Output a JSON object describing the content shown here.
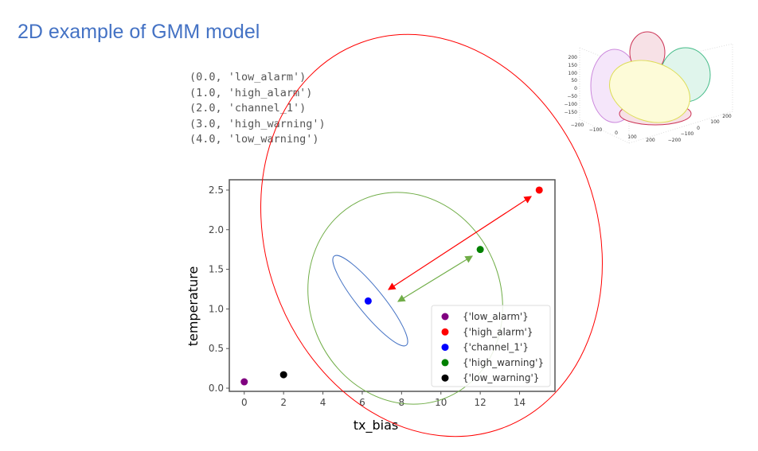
{
  "slide": {
    "title": "2D example of GMM model",
    "label_mapping": [
      "(0.0, 'low_alarm')",
      "(1.0, 'high_alarm')",
      "(2.0, 'channel_1')",
      "(3.0, 'high_warning')",
      "(4.0, 'low_warning')"
    ]
  },
  "chart_data": {
    "type": "scatter",
    "xlabel": "tx_bias",
    "ylabel": "temperature",
    "xlim": [
      -0.76,
      15.8
    ],
    "ylim": [
      -0.04,
      2.63
    ],
    "xticks": [
      0,
      2,
      4,
      6,
      8,
      10,
      12,
      14
    ],
    "yticks": [
      "0.0",
      "0.5",
      "1.0",
      "1.5",
      "2.0",
      "2.5"
    ],
    "legend_position": "lower-right",
    "series": [
      {
        "name": "{'low_alarm'}",
        "color": "#800080",
        "x": [
          0
        ],
        "y": [
          0.08
        ]
      },
      {
        "name": "{'high_alarm'}",
        "color": "#ff0000",
        "x": [
          15
        ],
        "y": [
          2.5
        ]
      },
      {
        "name": "{'channel_1'}",
        "color": "#0000ff",
        "x": [
          6.3
        ],
        "y": [
          1.1
        ]
      },
      {
        "name": "{'high_warning'}",
        "color": "#008000",
        "x": [
          12
        ],
        "y": [
          1.75
        ]
      },
      {
        "name": "{'low_warning'}",
        "color": "#000000",
        "x": [
          2
        ],
        "y": [
          0.17
        ]
      }
    ],
    "ellipse_colors": {
      "channel_1": "#4472C4",
      "high_warning": "#70AD47",
      "high_alarm": "#ff0000"
    }
  },
  "inset3d": {
    "z_ticks": [
      "200",
      "150",
      "100",
      "50",
      "0",
      "−50",
      "−100",
      "−150"
    ],
    "x_ticks": [
      "−200",
      "−100",
      "0",
      "100",
      "200"
    ],
    "y_ticks": [
      "−200",
      "−100",
      "0",
      "100",
      "200"
    ],
    "colors": [
      "#cc88dd",
      "#cc3355",
      "#44bb88",
      "#eeee66"
    ]
  }
}
